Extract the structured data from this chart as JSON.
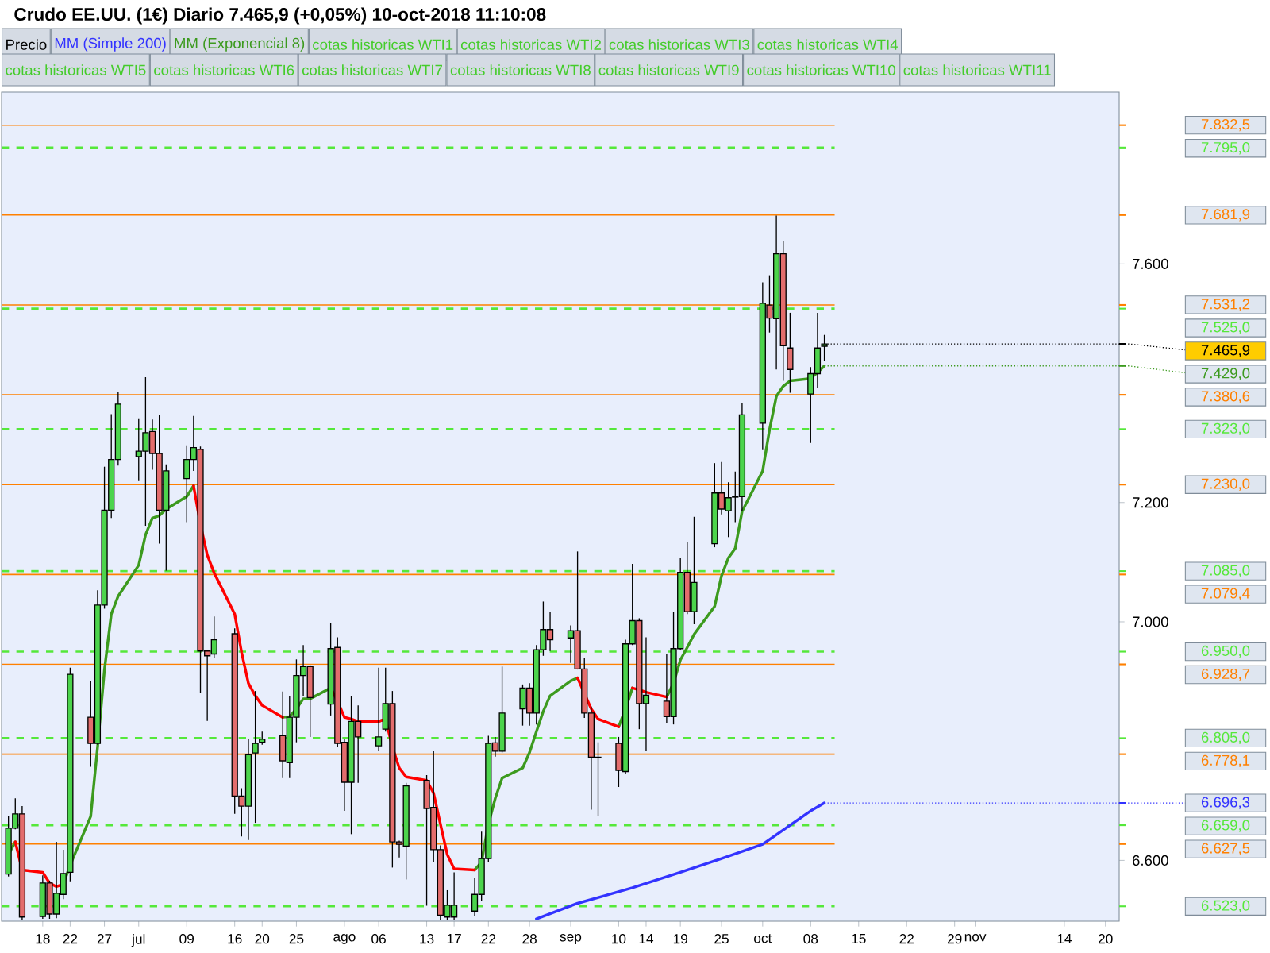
{
  "chart_data": {
    "type": "candlestick",
    "title": "Crudo EE.UU. (1€) Diario 7.465,9 (+0,05%) 10-oct-2018 11:10:08",
    "x": [
      "2018-06-13",
      "2018-06-14",
      "2018-06-15",
      "2018-06-18",
      "2018-06-19",
      "2018-06-20",
      "2018-06-21",
      "2018-06-22",
      "2018-06-25",
      "2018-06-26",
      "2018-06-27",
      "2018-06-28",
      "2018-06-29",
      "2018-07-02",
      "2018-07-03",
      "2018-07-04",
      "2018-07-05",
      "2018-07-06",
      "2018-07-09",
      "2018-07-10",
      "2018-07-11",
      "2018-07-12",
      "2018-07-13",
      "2018-07-16",
      "2018-07-17",
      "2018-07-18",
      "2018-07-19",
      "2018-07-20",
      "2018-07-23",
      "2018-07-24",
      "2018-07-25",
      "2018-07-26",
      "2018-07-27",
      "2018-07-30",
      "2018-07-31",
      "2018-08-01",
      "2018-08-02",
      "2018-08-03",
      "2018-08-06",
      "2018-08-07",
      "2018-08-08",
      "2018-08-09",
      "2018-08-10",
      "2018-08-13",
      "2018-08-14",
      "2018-08-15",
      "2018-08-16",
      "2018-08-17",
      "2018-08-20",
      "2018-08-21",
      "2018-08-22",
      "2018-08-23",
      "2018-08-24",
      "2018-08-27",
      "2018-08-28",
      "2018-08-29",
      "2018-08-30",
      "2018-08-31",
      "2018-09-03",
      "2018-09-04",
      "2018-09-05",
      "2018-09-06",
      "2018-09-07",
      "2018-09-10",
      "2018-09-11",
      "2018-09-12",
      "2018-09-13",
      "2018-09-14",
      "2018-09-17",
      "2018-09-18",
      "2018-09-19",
      "2018-09-20",
      "2018-09-21",
      "2018-09-24",
      "2018-09-25",
      "2018-09-26",
      "2018-09-27",
      "2018-09-28",
      "2018-10-01",
      "2018-10-02",
      "2018-10-03",
      "2018-10-04",
      "2018-10-05",
      "2018-10-08",
      "2018-10-09",
      "2018-10-10"
    ],
    "series": [
      {
        "name": "Precio",
        "type": "candlestick",
        "ohlc": [
          [
            6577,
            6674,
            6573,
            6654
          ],
          [
            6654,
            6704,
            6652,
            6678
          ],
          [
            6678,
            6691,
            6500,
            6505
          ],
          [
            6506,
            6575,
            6502,
            6562
          ],
          [
            6562,
            6566,
            6502,
            6510
          ],
          [
            6510,
            6631,
            6503,
            6545
          ],
          [
            6543,
            6618,
            6535,
            6578
          ],
          [
            6580,
            6923,
            6565,
            6912
          ],
          [
            6840,
            6901,
            6757,
            6796
          ],
          [
            6796,
            7053,
            6794,
            7028
          ],
          [
            7028,
            7260,
            7022,
            7187
          ],
          [
            7187,
            7348,
            7174,
            7272
          ],
          [
            7272,
            7386,
            7262,
            7365
          ],
          [
            7277,
            7341,
            7236,
            7286
          ],
          [
            7286,
            7410,
            7161,
            7317
          ],
          [
            7319,
            7339,
            7255,
            7282
          ],
          [
            7282,
            7346,
            7131,
            7187
          ],
          [
            7187,
            7264,
            7086,
            7253
          ],
          [
            7240,
            7296,
            7167,
            7272
          ],
          [
            7272,
            7345,
            7253,
            7292
          ],
          [
            7289,
            7294,
            6880,
            6951
          ],
          [
            6951,
            6953,
            6834,
            6943
          ],
          [
            6946,
            7009,
            6940,
            6970
          ],
          [
            6980,
            6989,
            6678,
            6708
          ],
          [
            6708,
            6721,
            6640,
            6691
          ],
          [
            6691,
            6803,
            6634,
            6777
          ],
          [
            6780,
            6884,
            6663,
            6796
          ],
          [
            6798,
            6816,
            6794,
            6803
          ],
          [
            6809,
            6883,
            6738,
            6767
          ],
          [
            6764,
            6876,
            6738,
            6840
          ],
          [
            6840,
            6937,
            6798,
            6910
          ],
          [
            6910,
            6961,
            6876,
            6925
          ],
          [
            6925,
            6927,
            6807,
            6873
          ],
          [
            6862,
            6998,
            6843,
            6955
          ],
          [
            6957,
            6974,
            6790,
            6796
          ],
          [
            6798,
            6803,
            6683,
            6731
          ],
          [
            6731,
            6876,
            6644,
            6833
          ],
          [
            6833,
            6860,
            6730,
            6807
          ],
          [
            6792,
            6923,
            6783,
            6807
          ],
          [
            6820,
            6923,
            6816,
            6863
          ],
          [
            6863,
            6884,
            6588,
            6631
          ],
          [
            6631,
            6633,
            6605,
            6627
          ],
          [
            6624,
            6730,
            6568,
            6725
          ],
          [
            6734,
            6743,
            6524,
            6687
          ],
          [
            6689,
            6783,
            6597,
            6618
          ],
          [
            6618,
            6625,
            6500,
            6508
          ],
          [
            6505,
            6550,
            6500,
            6525
          ],
          [
            6505,
            6580,
            6500,
            6525
          ],
          [
            6515,
            6571,
            6507,
            6543
          ],
          [
            6543,
            6648,
            6532,
            6603
          ],
          [
            6603,
            6809,
            6597,
            6796
          ],
          [
            6797,
            6807,
            6774,
            6783
          ],
          [
            6783,
            6925,
            6781,
            6847
          ],
          [
            6854,
            6895,
            6826,
            6889
          ],
          [
            6889,
            6897,
            6826,
            6847
          ],
          [
            6847,
            6961,
            6828,
            6953
          ],
          [
            6953,
            7034,
            6943,
            6987
          ],
          [
            6987,
            7017,
            6951,
            6970
          ],
          [
            6973,
            6994,
            6931,
            6985
          ],
          [
            6985,
            7118,
            6920,
            6921
          ],
          [
            6921,
            6940,
            6839,
            6847
          ],
          [
            6847,
            6858,
            6685,
            6773
          ],
          [
            6773,
            6798,
            6674,
            6772
          ],
          [
            6796,
            6807,
            6723,
            6751
          ],
          [
            6749,
            6970,
            6745,
            6963
          ],
          [
            6963,
            7097,
            6961,
            7002
          ],
          [
            7002,
            7006,
            6820,
            6863
          ],
          [
            6863,
            6974,
            6783,
            6877
          ],
          [
            6867,
            6946,
            6831,
            6841
          ],
          [
            6841,
            7017,
            6828,
            6955
          ],
          [
            6955,
            7107,
            6953,
            7083
          ],
          [
            7083,
            7133,
            7013,
            7017
          ],
          [
            7017,
            7176,
            6996,
            7066
          ],
          [
            7131,
            7266,
            7125,
            7216
          ],
          [
            7216,
            7268,
            7180,
            7189
          ],
          [
            7186,
            7234,
            7142,
            7208
          ],
          [
            7209,
            7252,
            7167,
            7210
          ],
          [
            7210,
            7367,
            7185,
            7347
          ],
          [
            7333,
            7569,
            7288,
            7534
          ],
          [
            7531,
            7581,
            7485,
            7509
          ],
          [
            7508,
            7681,
            7423,
            7617
          ],
          [
            7617,
            7638,
            7404,
            7463
          ],
          [
            7459,
            7518,
            7384,
            7423
          ],
          [
            7382,
            7427,
            7300,
            7416
          ],
          [
            7416,
            7518,
            7392,
            7459
          ],
          [
            7462,
            7481,
            7438,
            7465.9
          ]
        ]
      },
      {
        "name": "MM (Simple 200)",
        "type": "line",
        "color": "#3333ff",
        "x": [
          "2018-08-29",
          "2018-09-04",
          "2018-09-12",
          "2018-09-19",
          "2018-09-25",
          "2018-10-01",
          "2018-10-08",
          "2018-10-10"
        ],
        "values": [
          6502,
          6528,
          6554,
          6580,
          6603,
          6627,
          6683,
          6696.3
        ]
      },
      {
        "name": "MM (Exponencial 8)",
        "type": "line",
        "color": "#3c9a1e",
        "values": [
          6610,
          6631,
          null,
          null,
          null,
          null,
          6560,
          6592,
          6674,
          6790,
          6919,
          7013,
          7043,
          7095,
          7146,
          7174,
          7178,
          7189,
          7210,
          7228,
          null,
          null,
          null,
          null,
          null,
          null,
          null,
          null,
          6840,
          6841,
          6854,
          6871,
          6871,
          6889,
          null,
          null,
          null,
          null,
          6833,
          6837,
          null,
          null,
          null,
          null,
          null,
          null,
          null,
          null,
          6584,
          6597,
          6661,
          6704,
          6738,
          6755,
          6781,
          6816,
          6850,
          6876,
          6901,
          6906,
          null,
          null,
          null,
          6824,
          6854,
          6889,
          null,
          null,
          6874,
          6897,
          6936,
          6957,
          6979,
          7026,
          7077,
          7107,
          7123,
          7185,
          7253,
          7322,
          7378,
          7395,
          7404,
          7408,
          7418,
          7429
        ]
      },
      {
        "type": "line",
        "color": "#ff0000",
        "values": [
          null,
          6631,
          6584,
          6580,
          6562,
          6556,
          6560,
          null,
          null,
          null,
          null,
          null,
          null,
          null,
          null,
          null,
          null,
          null,
          null,
          7228,
          7163,
          7112,
          7082,
          7013,
          6949,
          6897,
          6876,
          6860,
          6840,
          null,
          null,
          null,
          null,
          6889,
          6867,
          6840,
          6837,
          6833,
          6833,
          6837,
          6790,
          6755,
          6740,
          6734,
          6713,
          6661,
          6610,
          6586,
          6584,
          null,
          null,
          null,
          null,
          null,
          null,
          null,
          null,
          null,
          null,
          6906,
          6880,
          6854,
          6837,
          6824,
          null,
          6889,
          6886,
          6882,
          6874,
          null,
          null,
          null,
          null,
          null,
          null,
          null,
          null,
          null,
          null,
          null,
          null,
          null,
          null,
          null,
          null,
          null
        ]
      }
    ],
    "xlim": [
      "2018-06-12",
      "2018-11-22"
    ],
    "xticks": [
      {
        "value": "2018-06-18",
        "label": "18"
      },
      {
        "value": "2018-06-22",
        "label": "22"
      },
      {
        "value": "2018-06-27",
        "label": "27"
      },
      {
        "value": "2018-07-02",
        "label": "jul"
      },
      {
        "value": "2018-07-09",
        "label": "09"
      },
      {
        "value": "2018-07-16",
        "label": "16"
      },
      {
        "value": "2018-07-20",
        "label": "20"
      },
      {
        "value": "2018-07-25",
        "label": "25"
      },
      {
        "value": "2018-08-01",
        "label": "ago"
      },
      {
        "value": "2018-08-06",
        "label": "06"
      },
      {
        "value": "2018-08-13",
        "label": "13"
      },
      {
        "value": "2018-08-17",
        "label": "17"
      },
      {
        "value": "2018-08-22",
        "label": "22"
      },
      {
        "value": "2018-08-28",
        "label": "28"
      },
      {
        "value": "2018-09-03",
        "label": "sep"
      },
      {
        "value": "2018-09-10",
        "label": "10"
      },
      {
        "value": "2018-09-14",
        "label": "14"
      },
      {
        "value": "2018-09-19",
        "label": "19"
      },
      {
        "value": "2018-09-25",
        "label": "25"
      },
      {
        "value": "2018-10-01",
        "label": "oct"
      },
      {
        "value": "2018-10-08",
        "label": "08"
      },
      {
        "value": "2018-10-15",
        "label": "15"
      },
      {
        "value": "2018-10-22",
        "label": "22"
      },
      {
        "value": "2018-10-29",
        "label": "29"
      },
      {
        "value": "2018-11-01",
        "label": "nov"
      },
      {
        "value": "2018-11-14",
        "label": "14"
      },
      {
        "value": "2018-11-20",
        "label": "20"
      }
    ],
    "ylim": [
      6498,
      7888
    ],
    "yticks": [
      {
        "value": 6600,
        "label": "6.600"
      },
      {
        "value": 7000,
        "label": "7.000"
      },
      {
        "value": 7200,
        "label": "7.200"
      },
      {
        "value": 7600,
        "label": "7.600"
      }
    ],
    "ref_lines": [
      {
        "axis": "y",
        "value": 7832.5,
        "label": "7.832,5",
        "color": "#ff8000",
        "line_style": "solid"
      },
      {
        "axis": "y",
        "value": 7795.0,
        "label": "7.795,0",
        "color": "#55e83a",
        "line_style": "dashed"
      },
      {
        "axis": "y",
        "value": 7681.9,
        "label": "7.681,9",
        "color": "#ff8000",
        "line_style": "solid"
      },
      {
        "axis": "y",
        "value": 7531.2,
        "label": "7.531,2",
        "color": "#ff8000",
        "line_style": "solid"
      },
      {
        "axis": "y",
        "value": 7525.0,
        "label": "7.525,0",
        "color": "#55e83a",
        "line_style": "dashed"
      },
      {
        "axis": "y",
        "value": 7380.6,
        "label": "7.380,6",
        "color": "#ff8000",
        "line_style": "solid"
      },
      {
        "axis": "y",
        "value": 7323.0,
        "label": "7.323,0",
        "color": "#55e83a",
        "line_style": "dashed"
      },
      {
        "axis": "y",
        "value": 7230.0,
        "label": "7.230,0",
        "color": "#ff8000",
        "line_style": "solid"
      },
      {
        "axis": "y",
        "value": 7085.0,
        "label": "7.085,0",
        "color": "#55e83a",
        "line_style": "dashed"
      },
      {
        "axis": "y",
        "value": 7079.4,
        "label": "7.079,4",
        "color": "#ff8000",
        "line_style": "solid"
      },
      {
        "axis": "y",
        "value": 6950.0,
        "label": "6.950,0",
        "color": "#55e83a",
        "line_style": "dashed"
      },
      {
        "axis": "y",
        "value": 6928.7,
        "label": "6.928,7",
        "color": "#ff8000",
        "line_style": "solid"
      },
      {
        "axis": "y",
        "value": 6805.0,
        "label": "6.805,0",
        "color": "#55e83a",
        "line_style": "dashed"
      },
      {
        "axis": "y",
        "value": 6778.1,
        "label": "6.778,1",
        "color": "#ff8000",
        "line_style": "solid"
      },
      {
        "axis": "y",
        "value": 6659.0,
        "label": "6.659,0",
        "color": "#55e83a",
        "line_style": "dashed"
      },
      {
        "axis": "y",
        "value": 6627.5,
        "label": "6.627,5",
        "color": "#ff8000",
        "line_style": "solid"
      },
      {
        "axis": "y",
        "value": 6523.0,
        "label": "6.523,0",
        "color": "#55e83a",
        "line_style": "dashed"
      }
    ],
    "annotations": [
      "cotas historicas WTI1",
      "cotas historicas WTI2",
      "cotas historicas WTI3",
      "cotas historicas WTI4",
      "cotas historicas WTI5",
      "cotas historicas WTI6",
      "cotas historicas WTI7",
      "cotas historicas WTI8",
      "cotas historicas WTI9",
      "cotas historicas WTI10",
      "cotas historicas WTI11",
      {
        "text": "7.465,9",
        "x": "2018-10-10",
        "y": 7465.9
      },
      {
        "text": "7.429,0",
        "x": "2018-10-10",
        "y": 7429.0
      },
      {
        "text": "6.696,3",
        "x": "2018-10-10",
        "y": 6696.3
      }
    ],
    "legend": "top"
  }
}
